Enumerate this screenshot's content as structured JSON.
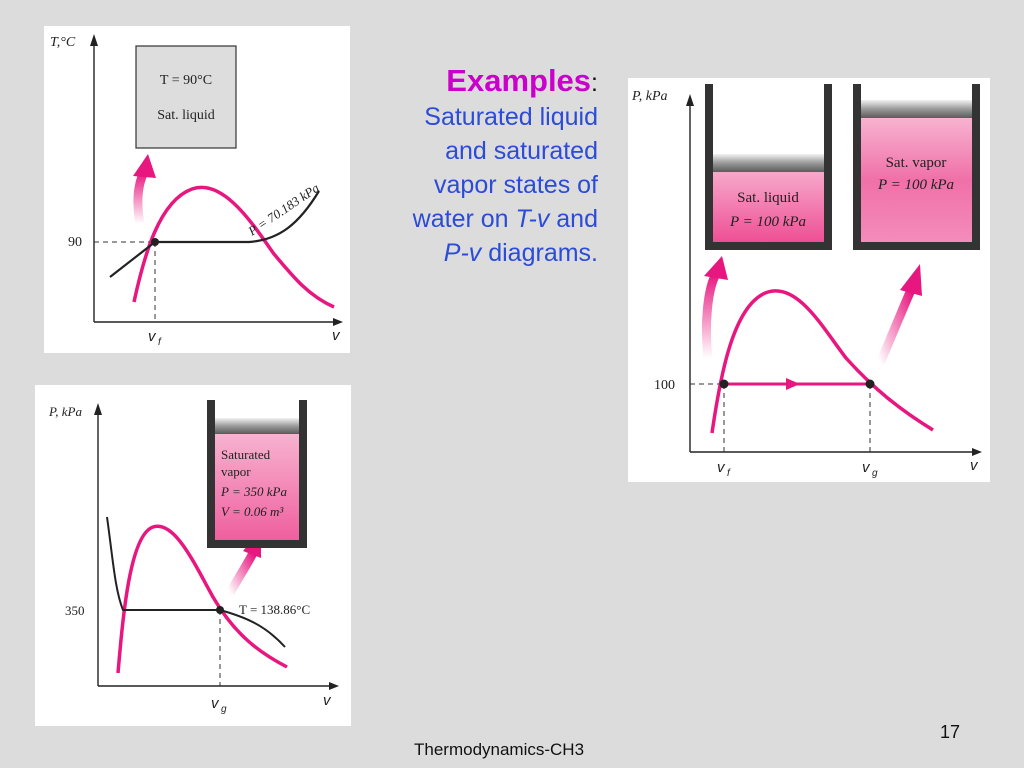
{
  "slide": {
    "heading": "Examples",
    "heading_colon": ":",
    "lines": [
      {
        "plain_before": "Saturated liquid",
        "italic": "",
        "plain_after": ""
      },
      {
        "plain_before": "and saturated",
        "italic": "",
        "plain_after": ""
      },
      {
        "plain_before": "vapor states of",
        "italic": "",
        "plain_after": ""
      },
      {
        "plain_before": "water on ",
        "italic": "T-v",
        "plain_after": " and"
      },
      {
        "plain_before": "",
        "italic": "P-v",
        "plain_after": " diagrams."
      }
    ],
    "page_number": "17",
    "footer": "Thermodynamics-CH3"
  },
  "diagram_tv": {
    "y_axis_label": "T,°C",
    "x_axis_label": "v",
    "tick_y": "90",
    "tick_x_main": "v",
    "tick_x_sub": "f",
    "box_line1": "T = 90°C",
    "box_line2": "Sat. liquid",
    "isobar_label": "P = 70.183 kPa"
  },
  "diagram_pv_350": {
    "y_axis_label": "P, kPa",
    "x_axis_label": "v",
    "tick_y": "350",
    "tick_x_main": "v",
    "tick_x_sub": "g",
    "isotherm_label": "T = 138.86°C",
    "box_line1": "Saturated",
    "box_line2": "vapor",
    "box_line3": "P = 350 kPa",
    "box_line4": "V = 0.06 m³"
  },
  "diagram_pv_100": {
    "y_axis_label": "P, kPa",
    "x_axis_label": "v",
    "tick_y": "100",
    "tick_x1_main": "v",
    "tick_x1_sub": "f",
    "tick_x2_main": "v",
    "tick_x2_sub": "g",
    "left_cyl_line1": "Sat. liquid",
    "left_cyl_line2": "P = 100 kPa",
    "right_cyl_line1": "Sat. vapor",
    "right_cyl_line2": "P = 100 kPa"
  },
  "colors": {
    "dome": "#e8177f",
    "accent_heading": "#cc00cc",
    "body_text": "#2b4bd8",
    "pink_fill": "#f06aa6",
    "background": "#dcdcdc"
  }
}
